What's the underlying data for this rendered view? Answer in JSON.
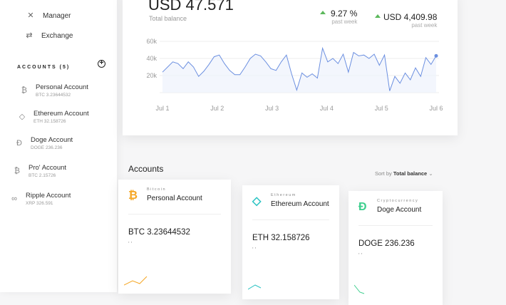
{
  "sidebar": {
    "nav": [
      {
        "label": "Manager",
        "icon": "tools-icon"
      },
      {
        "label": "Exchange",
        "icon": "exchange-icon"
      }
    ],
    "accounts_heading": "ACCOUNTS (5)",
    "add_icon": "plus-circle-icon",
    "accounts": [
      {
        "name": "Personal Account",
        "balance": "BTC 3.23644532",
        "icon": "bitcoin-icon"
      },
      {
        "name": "Ethereum Account",
        "balance": "ETH 32.158726",
        "icon": "ethereum-icon"
      },
      {
        "name": "Doge Account",
        "balance": "DOGE 236.236",
        "icon": "doge-icon"
      },
      {
        "name": "Pro' Account",
        "balance": "BTC 2.15726",
        "icon": "bitcoin-icon"
      },
      {
        "name": "Ripple Account",
        "balance": "XRP 326.591",
        "icon": "ripple-icon"
      }
    ]
  },
  "overview": {
    "total": "USD 47.571",
    "total_label": "Total balance",
    "change_pct": "9.27 %",
    "change_pct_label": "past week",
    "change_usd": "USD 4,409.98",
    "change_usd_label": "past week",
    "up_color": "#5cb85c"
  },
  "chart_data": {
    "type": "area",
    "x_ticks": [
      "Jul 1",
      "Jul 2",
      "Jul 3",
      "Jul 4",
      "Jul 5",
      "Jul 6"
    ],
    "y_ticks": [
      "20k",
      "40k",
      "60k"
    ],
    "ylim": [
      0,
      60000
    ],
    "grid": true,
    "color": "#6b8fe0",
    "values": [
      24,
      30,
      36,
      34,
      28,
      36,
      30,
      19,
      25,
      33,
      42,
      44,
      34,
      26,
      21,
      21,
      30,
      40,
      45,
      43,
      36,
      28,
      26,
      36,
      44,
      22,
      3,
      23,
      18,
      22,
      17,
      52,
      36,
      40,
      34,
      45,
      24,
      47,
      43,
      44,
      40,
      45,
      32,
      44,
      2,
      19,
      11,
      23,
      15,
      29,
      19,
      41,
      33,
      43
    ]
  },
  "accounts_section": {
    "title": "Accounts",
    "sort_prefix": "Sort by",
    "sort_value": "Total balance",
    "cards": [
      {
        "type": "Bitcoin",
        "name": "Personal Account",
        "balance": "BTC 3.23644532",
        "quote": "' '",
        "color": "#f5a623",
        "icon": "bitcoin-icon"
      },
      {
        "type": "Ethereum",
        "name": "Ethereum Account",
        "balance": "ETH 32.158726",
        "quote": "' '",
        "color": "#2ec4c4",
        "icon": "ethereum-icon"
      },
      {
        "type": "Cryptocurrency",
        "name": "Doge Account",
        "balance": "DOGE 236.236",
        "quote": "' '",
        "color": "#3ecf8e",
        "icon": "doge-icon"
      }
    ]
  }
}
